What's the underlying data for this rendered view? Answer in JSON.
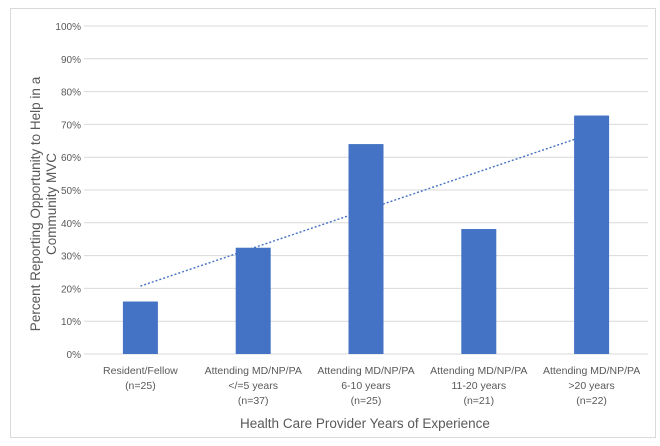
{
  "chart_data": {
    "type": "bar",
    "categories": [
      [
        "Resident/Fellow",
        "(n=25)"
      ],
      [
        "Attending MD/NP/PA",
        "</=5 years",
        "(n=37)"
      ],
      [
        "Attending MD/NP/PA",
        "6-10 years",
        "(n=25)"
      ],
      [
        "Attending MD/NP/PA",
        "11-20 years",
        "(n=21)"
      ],
      [
        "Attending MD/NP/PA",
        ">20 years",
        "(n=22)"
      ]
    ],
    "values": [
      16,
      32.4,
      64,
      38.1,
      72.7
    ],
    "ylabel_lines": [
      "Percent Reporting Opportunity to Help in a",
      "Community MVC"
    ],
    "xlabel": "Health Care Provider Years of Experience",
    "ylim": [
      0,
      100
    ],
    "yticks": [
      0,
      10,
      20,
      30,
      40,
      50,
      60,
      70,
      80,
      90,
      100
    ],
    "ytick_labels": [
      "0%",
      "10%",
      "20%",
      "30%",
      "40%",
      "50%",
      "60%",
      "70%",
      "80%",
      "90%",
      "100%"
    ],
    "trendline": {
      "type": "linear",
      "start": 20.7,
      "end": 67.2
    },
    "grid": true,
    "colors": {
      "bar": "#4472c4",
      "trendline": "#4472c4",
      "grid": "#d9d9d9",
      "text": "#595959"
    }
  }
}
